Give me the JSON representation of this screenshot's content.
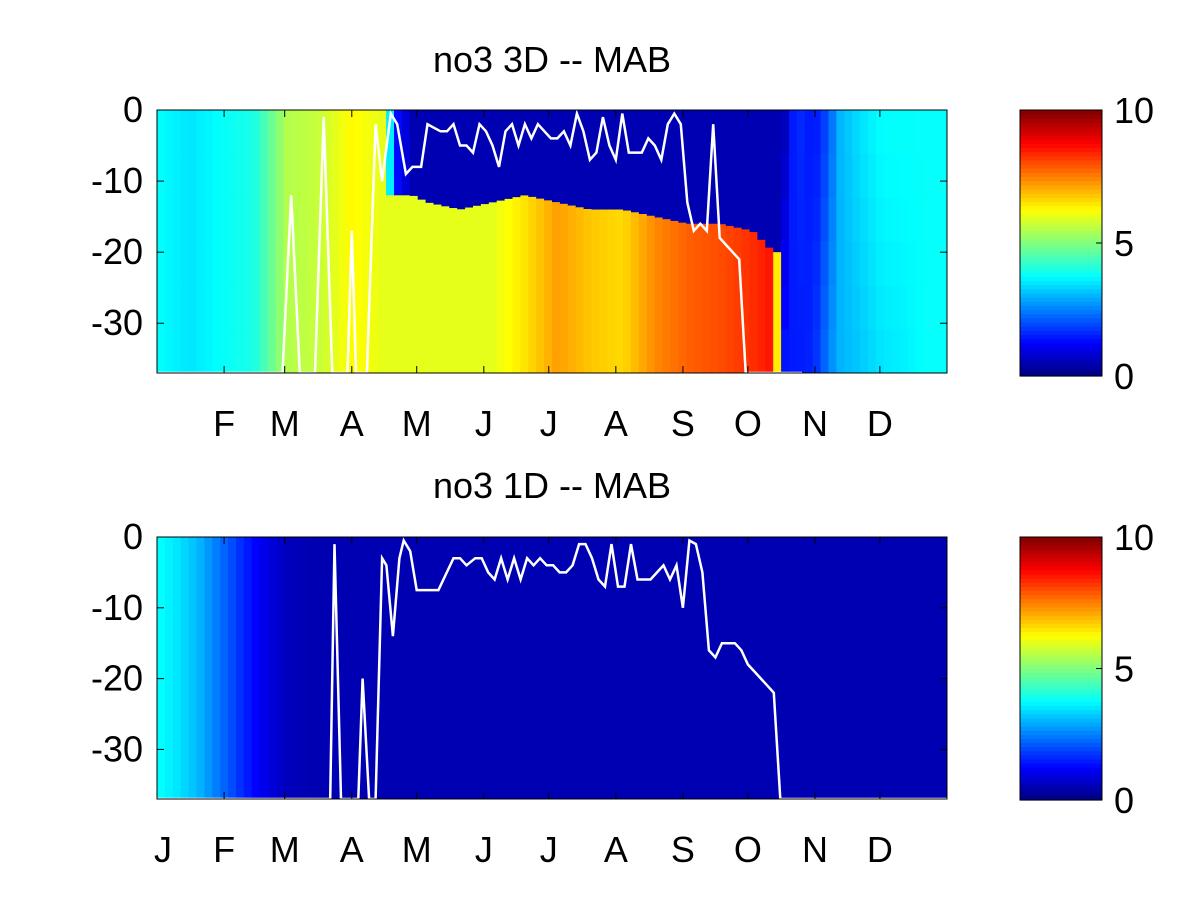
{
  "chart_data": [
    {
      "type": "heatmap",
      "title": "no3 3D   -- MAB",
      "xlabel": "",
      "ylabel": "",
      "ylim": [
        -37,
        0
      ],
      "y_ticks": [
        "0",
        "-10",
        "-20",
        "-30"
      ],
      "y_tick_values": [
        0,
        -10,
        -20,
        -30
      ],
      "x_ticks": [
        "F",
        "M",
        "A",
        "M",
        "J",
        "J",
        "A",
        "S",
        "O",
        "N",
        "D"
      ],
      "x_tick_months": [
        2,
        3,
        4,
        5,
        6,
        7,
        8,
        9,
        10,
        11,
        12
      ],
      "xlim_days": [
        0,
        365
      ],
      "colorbar": {
        "range": [
          0,
          10
        ],
        "ticks": [
          "0",
          "5",
          "10"
        ],
        "tick_values": [
          0,
          5,
          10
        ],
        "colormap": "jet"
      },
      "field": {
        "days": [
          0,
          15,
          30,
          45,
          60,
          75,
          90,
          105,
          110,
          118,
          125,
          140,
          155,
          170,
          185,
          200,
          215,
          230,
          245,
          260,
          275,
          285,
          290,
          295,
          300,
          305,
          310,
          315,
          325,
          335,
          345,
          355,
          365
        ],
        "surface_no3": [
          3.8,
          3.5,
          3.8,
          4.0,
          5.5,
          5.7,
          6.3,
          6.0,
          1.5,
          0.5,
          0.5,
          0.5,
          0.5,
          0.5,
          0.5,
          0.5,
          0.5,
          0.5,
          0.5,
          0.5,
          0.5,
          0.5,
          0.5,
          1.8,
          1.5,
          1.5,
          2.0,
          3.0,
          3.5,
          3.8,
          3.8,
          3.8,
          3.8
        ],
        "bottom_no3": [
          3.8,
          3.5,
          3.8,
          4.0,
          5.5,
          5.7,
          6.3,
          6.0,
          6.0,
          6.0,
          6.0,
          6.0,
          6.0,
          6.5,
          7.2,
          6.8,
          6.6,
          7.4,
          7.8,
          8.0,
          8.3,
          8.6,
          1.5,
          1.5,
          1.5,
          1.8,
          2.5,
          3.0,
          3.2,
          3.5,
          3.6,
          3.8,
          3.8
        ],
        "mixed_layer_depth": [
          null,
          null,
          null,
          null,
          null,
          null,
          null,
          null,
          -12,
          -12,
          -13,
          -14,
          -13,
          -12,
          -13,
          -14,
          -14,
          -15,
          -16,
          -16,
          -17,
          -20,
          null,
          null,
          null,
          null,
          null,
          null,
          null,
          null,
          null,
          null,
          null
        ]
      },
      "line": {
        "color": "#ffffff",
        "x_days": [
          0,
          58,
          62,
          66,
          70,
          73,
          77,
          81,
          84,
          88,
          90,
          92,
          97,
          101,
          104,
          108,
          111,
          115,
          118,
          122,
          125,
          128,
          131,
          134,
          137,
          140,
          143,
          146,
          149,
          152,
          155,
          158,
          161,
          164,
          167,
          170,
          173,
          176,
          179,
          182,
          185,
          188,
          191,
          194,
          197,
          200,
          203,
          206,
          209,
          212,
          215,
          218,
          221,
          224,
          227,
          230,
          233,
          236,
          239,
          242,
          245,
          248,
          251,
          254,
          257,
          260,
          263,
          266,
          269,
          272,
          275,
          278,
          281,
          284,
          287,
          290,
          293,
          296,
          298
        ],
        "y": [
          -37,
          -37,
          -12,
          -37,
          -37,
          -37,
          -1,
          -37,
          -37,
          -37,
          -17,
          -37,
          -37,
          -2,
          -10,
          -0.5,
          -2,
          -9,
          -8,
          -8,
          -2,
          -2.5,
          -3,
          -3,
          -2,
          -5,
          -5,
          -6,
          -2,
          -3,
          -5,
          -8,
          -3,
          -2,
          -5,
          -2,
          -4,
          -2,
          -3,
          -4,
          -4,
          -3,
          -5,
          -0.5,
          -3,
          -7,
          -6,
          -1,
          -5,
          -7,
          -0.5,
          -6,
          -6,
          -6,
          -4,
          -5,
          -7,
          -2,
          -0.5,
          -2,
          -13,
          -17,
          -16,
          -17,
          -2,
          -18,
          -19,
          -20,
          -21,
          -37,
          -37,
          -37,
          -37,
          -37,
          -37,
          -37,
          -37,
          -37,
          -37
        ]
      }
    },
    {
      "type": "heatmap",
      "title": "no3 1D   -- MAB",
      "xlabel": "",
      "ylabel": "",
      "ylim": [
        -37,
        0
      ],
      "y_ticks": [
        "0",
        "-10",
        "-20",
        "-30"
      ],
      "y_tick_values": [
        0,
        -10,
        -20,
        -30
      ],
      "x_ticks": [
        "J",
        "F",
        "M",
        "A",
        "M",
        "J",
        "J",
        "A",
        "S",
        "O",
        "N",
        "D"
      ],
      "x_tick_months": [
        1,
        2,
        3,
        4,
        5,
        6,
        7,
        8,
        9,
        10,
        11,
        12
      ],
      "xlim_days": [
        0,
        365
      ],
      "colorbar": {
        "range": [
          0,
          10
        ],
        "ticks": [
          "0",
          "5",
          "10"
        ],
        "tick_values": [
          0,
          5,
          10
        ],
        "colormap": "jet"
      },
      "field": {
        "days": [
          0,
          10,
          20,
          30,
          40,
          50,
          60,
          70,
          80,
          365
        ],
        "no3": [
          3.8,
          3.5,
          3.0,
          2.3,
          1.6,
          1.0,
          0.6,
          0.5,
          0.5,
          0.5
        ]
      },
      "line": {
        "color": "#ffffff",
        "x_days": [
          0,
          80,
          82,
          85,
          88,
          93,
          95,
          98,
          101,
          104,
          106,
          109,
          112,
          114,
          117,
          120,
          124,
          130,
          137,
          140,
          143,
          147,
          150,
          153,
          156,
          159,
          162,
          165,
          168,
          171,
          174,
          177,
          180,
          183,
          186,
          189,
          192,
          195,
          198,
          201,
          204,
          207,
          210,
          213,
          216,
          219,
          222,
          225,
          228,
          231,
          234,
          237,
          240,
          243,
          246,
          249,
          252,
          255,
          258,
          261,
          264,
          267,
          270,
          273,
          276,
          279,
          282,
          285,
          288,
          291,
          294,
          297,
          300,
          365
        ],
        "y": [
          -37,
          -37,
          -1,
          -37,
          -37,
          -37,
          -20,
          -37,
          -37,
          -3,
          -4,
          -14,
          -3,
          -0.5,
          -2,
          -7.5,
          -7.5,
          -7.5,
          -3,
          -3,
          -4,
          -3,
          -3,
          -5,
          -6,
          -3,
          -6,
          -3,
          -6,
          -3,
          -4,
          -3,
          -4,
          -4,
          -5,
          -5,
          -4,
          -1,
          -1,
          -3,
          -6,
          -7,
          -1,
          -7,
          -7,
          -1,
          -6,
          -6,
          -6,
          -5,
          -4,
          -6,
          -4,
          -10,
          -0.5,
          -1,
          -5,
          -16,
          -17,
          -15,
          -15,
          -15,
          -16,
          -18,
          -19,
          -20,
          -21,
          -22,
          -37,
          -37,
          -37,
          -37,
          -37,
          -37
        ]
      }
    }
  ]
}
